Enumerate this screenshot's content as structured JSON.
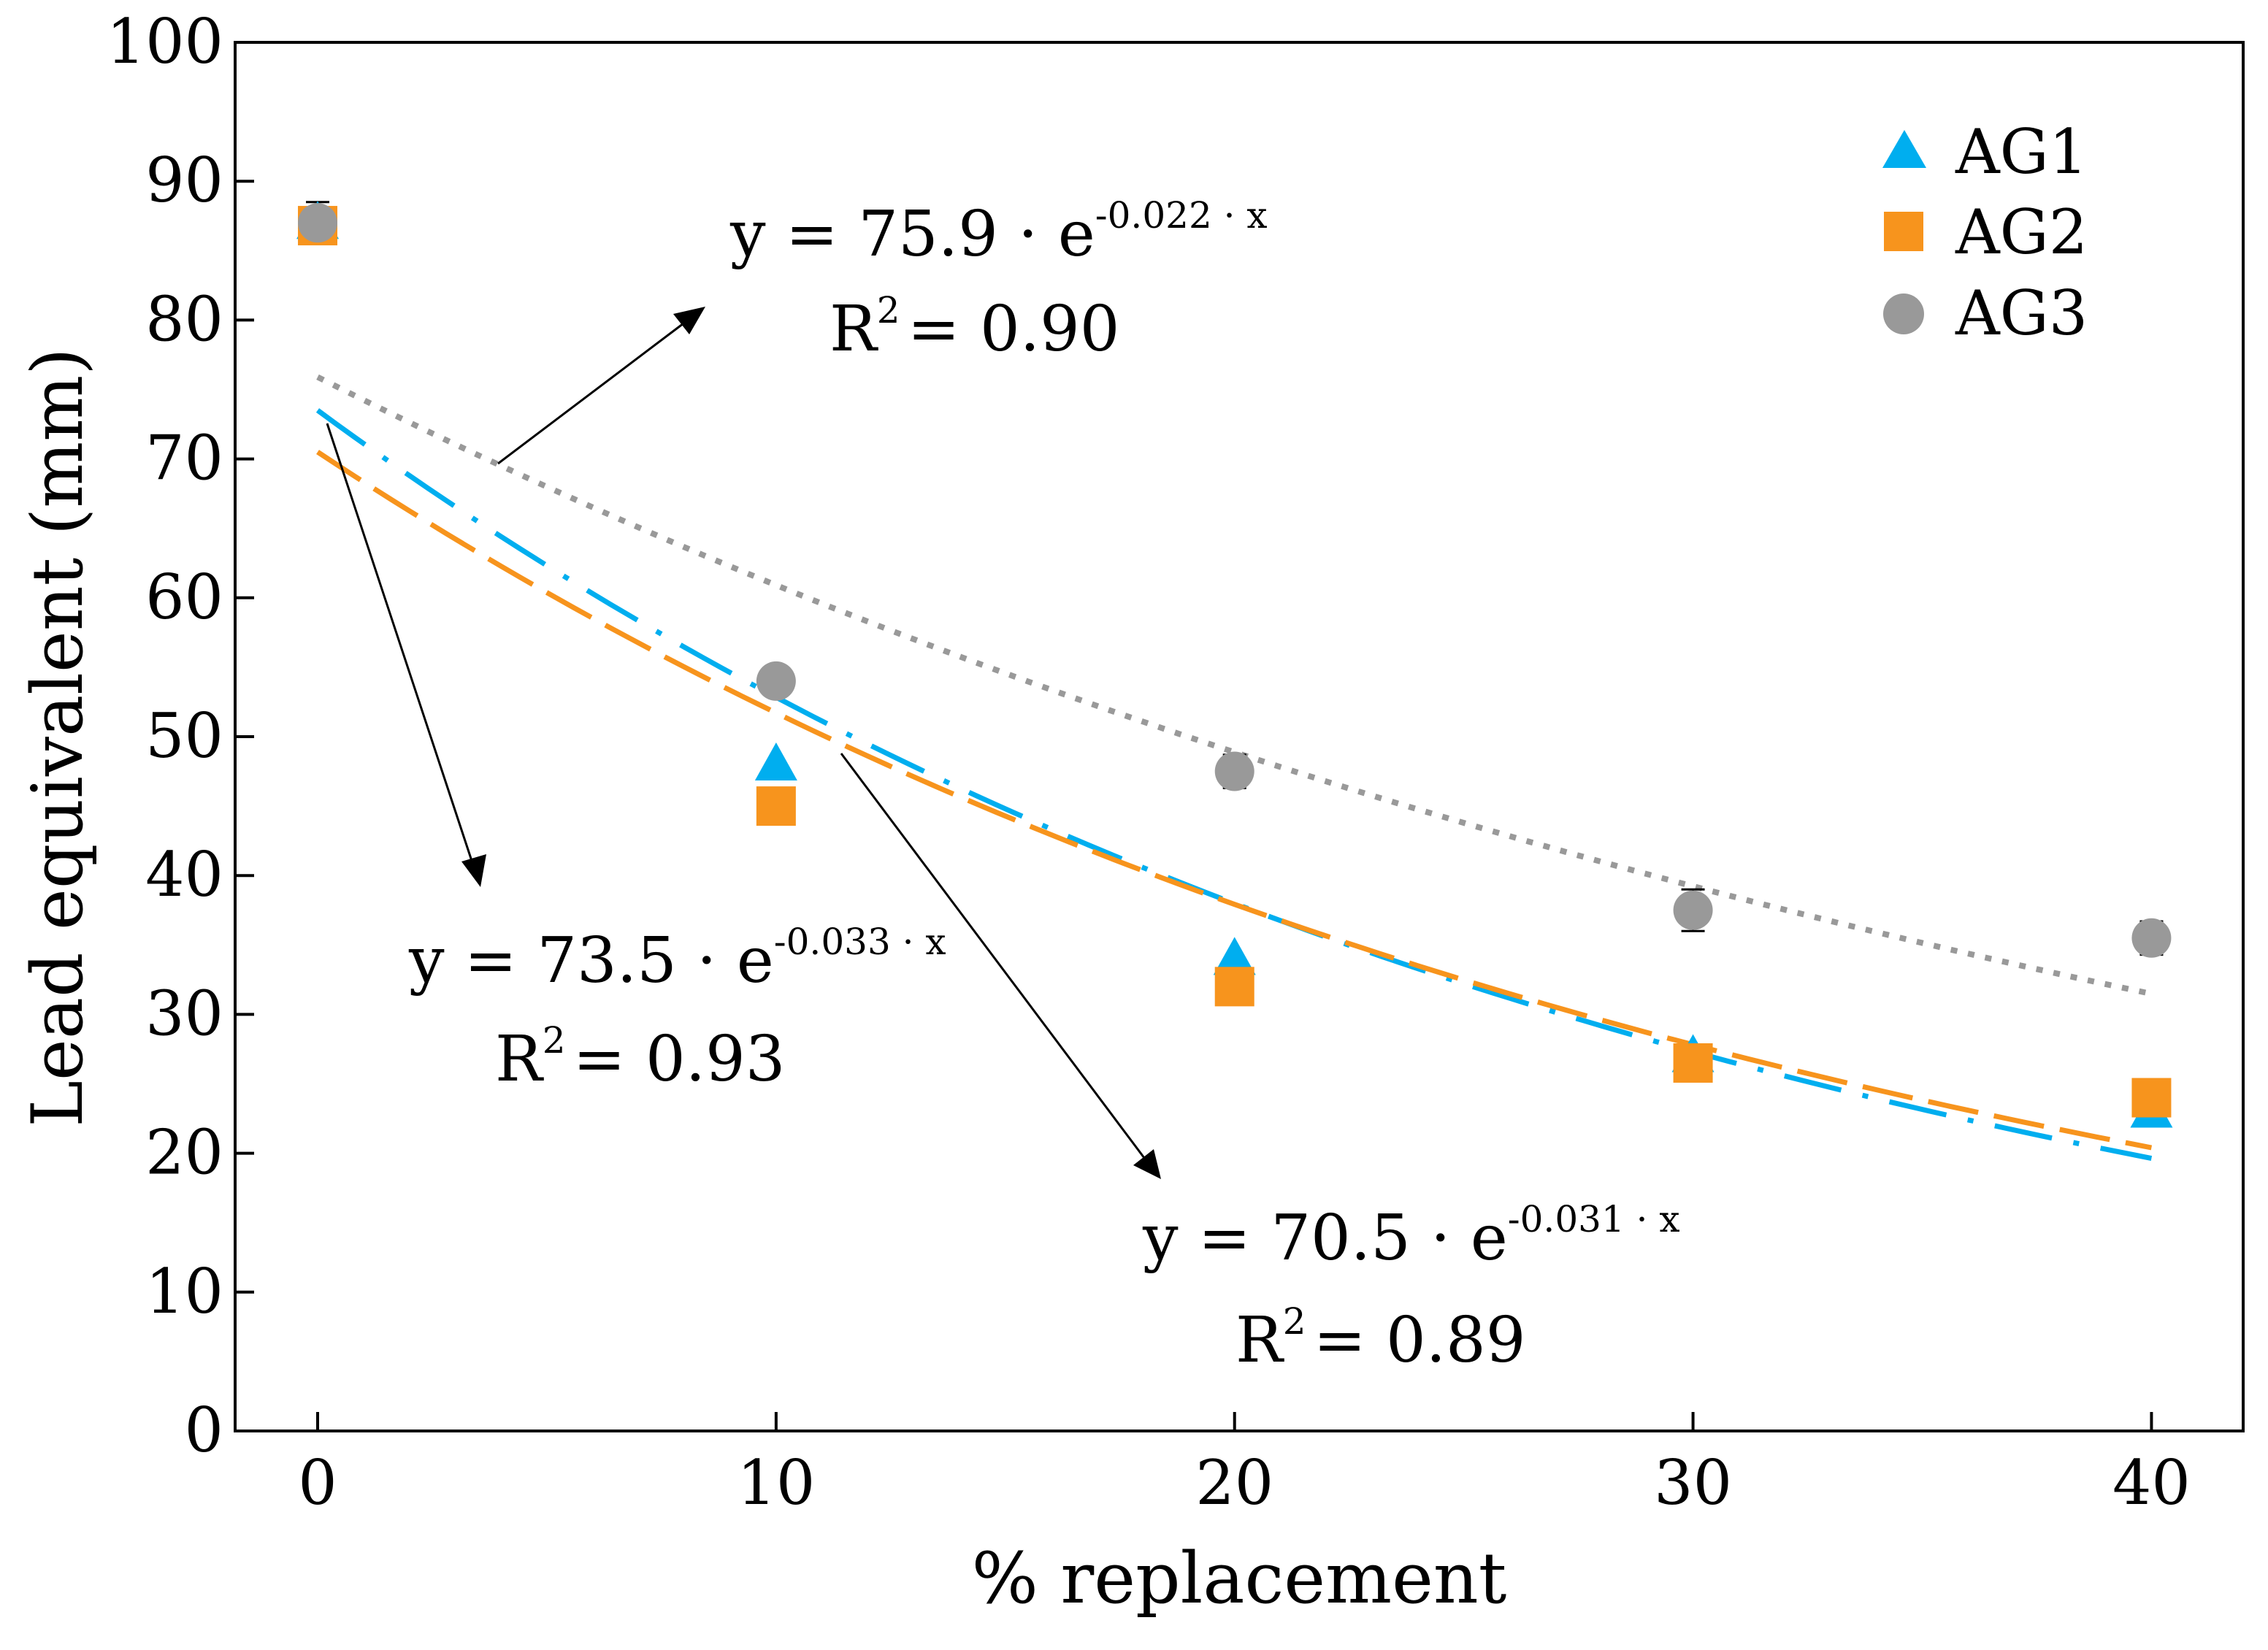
{
  "chart_data": {
    "type": "scatter",
    "title": "",
    "xlabel": "% replacement",
    "ylabel": "Lead equivalent (mm)",
    "xlim": [
      -1.8,
      42
    ],
    "ylim": [
      0,
      100
    ],
    "x_ticks": [
      0,
      10,
      20,
      30,
      40
    ],
    "y_ticks": [
      0,
      10,
      20,
      30,
      40,
      50,
      60,
      70,
      80,
      90,
      100
    ],
    "legend_position": "top-right",
    "series": [
      {
        "name": "AG1",
        "marker": "triangle",
        "color": "#00aeef",
        "x": [
          0,
          10,
          20,
          30,
          40
        ],
        "values": [
          87,
          48,
          34,
          27,
          23
        ],
        "fit": {
          "a": 73.5,
          "b": -0.033,
          "style": "dash-dot",
          "label": "y = 73.5 · e",
          "exponent": "-0.033 · x",
          "r2_label": "R",
          "r2_value": "= 0.93"
        }
      },
      {
        "name": "AG2",
        "marker": "square",
        "color": "#f7941d",
        "x": [
          0,
          10,
          20,
          30,
          40
        ],
        "values": [
          86.8,
          45,
          32,
          26.5,
          24
        ],
        "fit": {
          "a": 70.5,
          "b": -0.031,
          "style": "long-dash",
          "label": "y = 70.5 · e",
          "exponent": "-0.031 · x",
          "r2_label": "R",
          "r2_value": "= 0.89"
        }
      },
      {
        "name": "AG3",
        "marker": "circle",
        "color": "#999999",
        "x": [
          0,
          10,
          20,
          30,
          40
        ],
        "values": [
          87,
          54,
          47.5,
          37.5,
          35.5
        ],
        "errors": [
          1.5,
          1.0,
          1.2,
          1.5,
          1.2
        ],
        "fit": {
          "a": 75.9,
          "b": -0.022,
          "style": "dotted",
          "label": "y = 75.9 · e",
          "exponent": "-0.022 · x",
          "r2_label": "R",
          "r2_value": "= 0.90"
        }
      }
    ],
    "r2_exponent": "2"
  }
}
